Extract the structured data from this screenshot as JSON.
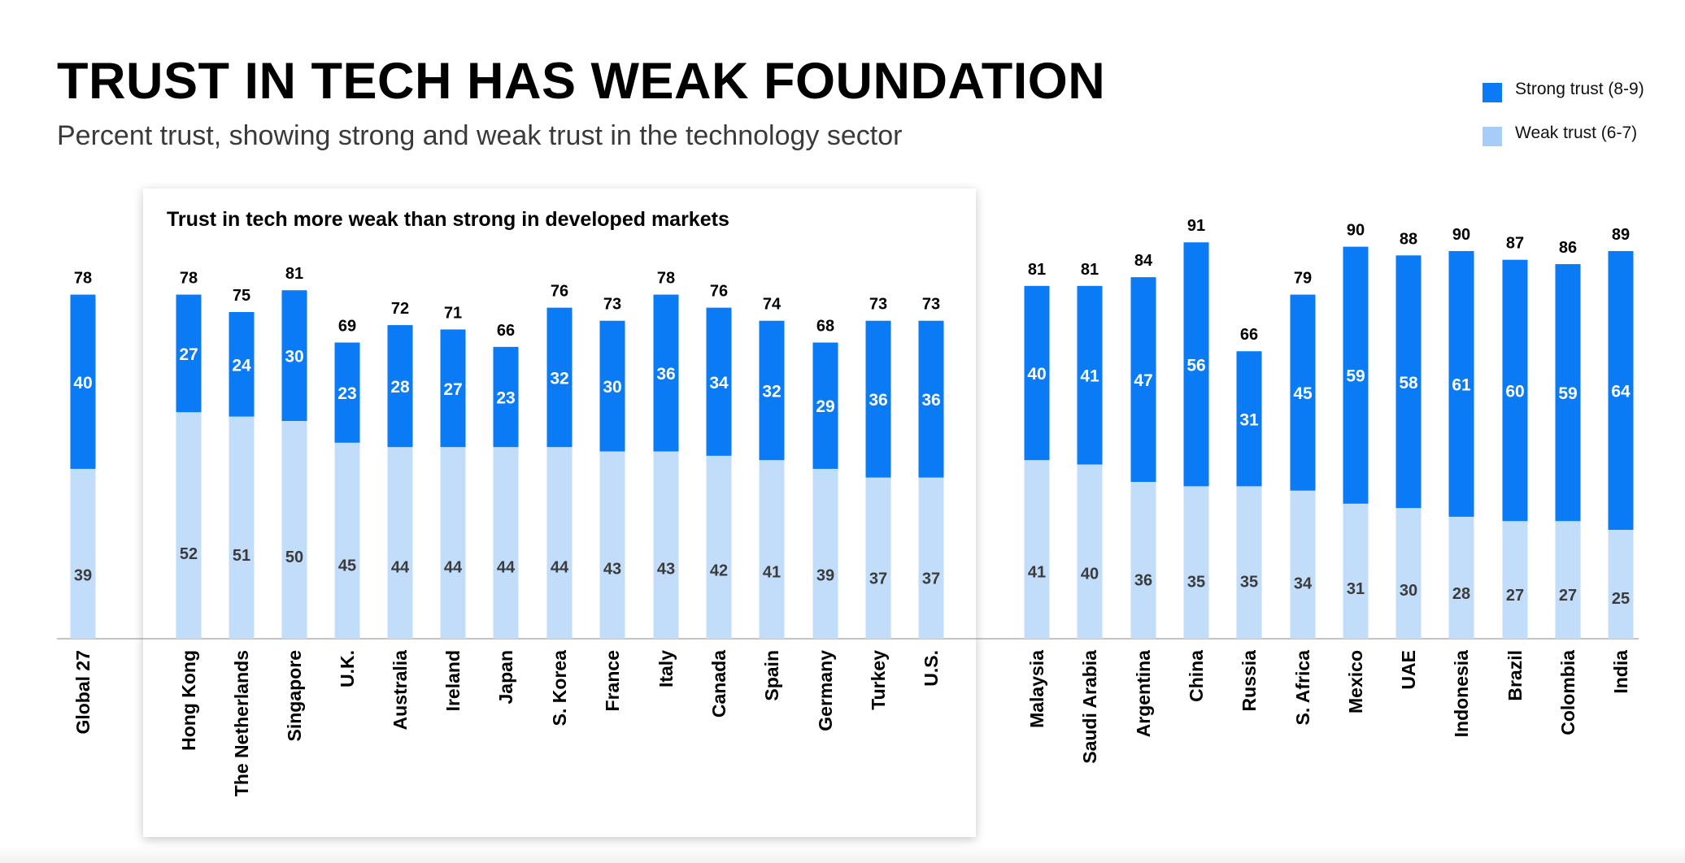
{
  "title": "TRUST IN TECH HAS WEAK FOUNDATION",
  "subtitle": "Percent trust, showing strong and weak trust in the technology sector",
  "panel_title": "Trust in tech more weak than strong in developed markets",
  "legend": [
    {
      "label": "Strong trust (8-9)",
      "color": "#0a7af5"
    },
    {
      "label": "Weak trust (6-7)",
      "color": "#a6cdf7"
    }
  ],
  "chart_data": {
    "type": "bar",
    "stacked": true,
    "categories": [
      "Global 27",
      "Hong Kong",
      "The Netherlands",
      "Singapore",
      "U.K.",
      "Australia",
      "Ireland",
      "Japan",
      "S. Korea",
      "France",
      "Italy",
      "Canada",
      "Spain",
      "Germany",
      "Turkey",
      "U.S.",
      "Malaysia",
      "Saudi Arabia",
      "Argentina",
      "China",
      "Russia",
      "S. Africa",
      "Mexico",
      "UAE",
      "Indonesia",
      "Brazil",
      "Colombia",
      "India"
    ],
    "series": [
      {
        "name": "Weak trust (6-7)",
        "color": "#c2ddfa",
        "values": [
          39,
          52,
          51,
          50,
          45,
          44,
          44,
          44,
          44,
          43,
          43,
          42,
          41,
          39,
          37,
          37,
          41,
          40,
          36,
          35,
          35,
          34,
          31,
          30,
          28,
          27,
          27,
          25
        ]
      },
      {
        "name": "Strong trust (8-9)",
        "color": "#0a7af5",
        "values": [
          40,
          27,
          24,
          30,
          23,
          28,
          27,
          23,
          32,
          30,
          36,
          34,
          32,
          29,
          36,
          36,
          40,
          41,
          47,
          56,
          31,
          45,
          59,
          58,
          61,
          60,
          59,
          64
        ]
      }
    ],
    "totals": [
      78,
      78,
      75,
      81,
      69,
      72,
      71,
      66,
      76,
      73,
      78,
      76,
      74,
      68,
      73,
      73,
      81,
      81,
      84,
      91,
      66,
      79,
      90,
      88,
      90,
      87,
      86,
      89
    ],
    "groups": [
      {
        "name": "Trust in tech more weak than strong in developed markets",
        "from": "Hong Kong",
        "to": "U.S."
      }
    ],
    "title": "TRUST IN TECH HAS WEAK FOUNDATION",
    "subtitle": "Percent trust, showing strong and weak trust in the technology sector",
    "xlabel": "",
    "ylabel": "",
    "ylim": [
      0,
      100
    ],
    "grid": false,
    "legend_position": "top-right"
  }
}
